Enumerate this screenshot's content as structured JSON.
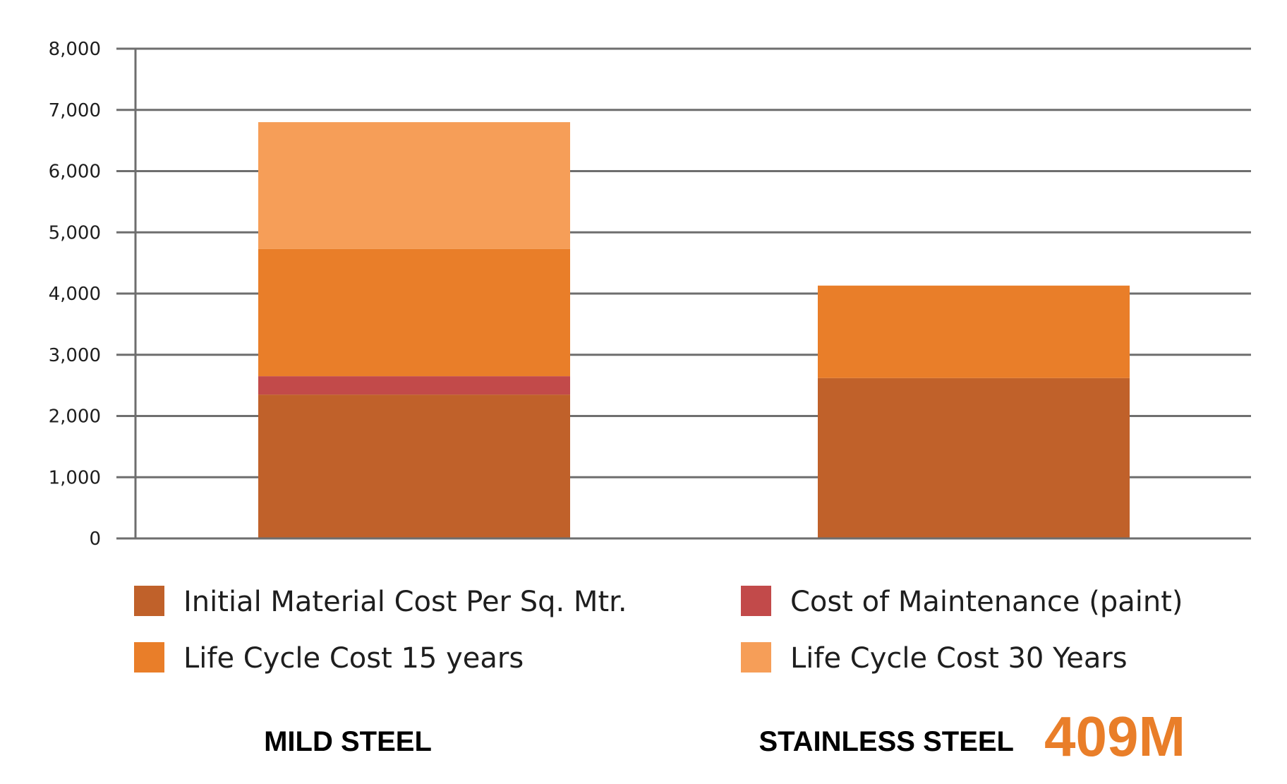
{
  "chart_data": {
    "type": "bar",
    "stacked": true,
    "categories": [
      "MILD STEEL",
      "STAINLESS STEEL"
    ],
    "series": [
      {
        "name": "Initial Material Cost Per Sq. Mtr.",
        "color": "#C0612A",
        "values": [
          2350,
          2620
        ]
      },
      {
        "name": "Cost of Maintenance (paint)",
        "color": "#C24A4A",
        "values": [
          300,
          0
        ]
      },
      {
        "name": "Life Cycle Cost 15 years",
        "color": "#E97E29",
        "values": [
          2080,
          1510
        ]
      },
      {
        "name": "Life Cycle Cost 30 Years",
        "color": "#F69E58",
        "values": [
          2070,
          0
        ]
      }
    ],
    "ylim": [
      0,
      8000
    ],
    "yticks": [
      0,
      1000,
      2000,
      3000,
      4000,
      5000,
      6000,
      7000,
      8000
    ],
    "ytick_labels": [
      "0",
      "1,000",
      "2,000",
      "3,000",
      "4,000",
      "5,000",
      "6,000",
      "7,000",
      "8,000"
    ],
    "grid": true,
    "legend_position": "bottom",
    "annotation": {
      "text": "409M",
      "color": "#E97E29"
    }
  },
  "colors": {
    "grid": "#6e6e6e",
    "axis": "#6e6e6e"
  }
}
